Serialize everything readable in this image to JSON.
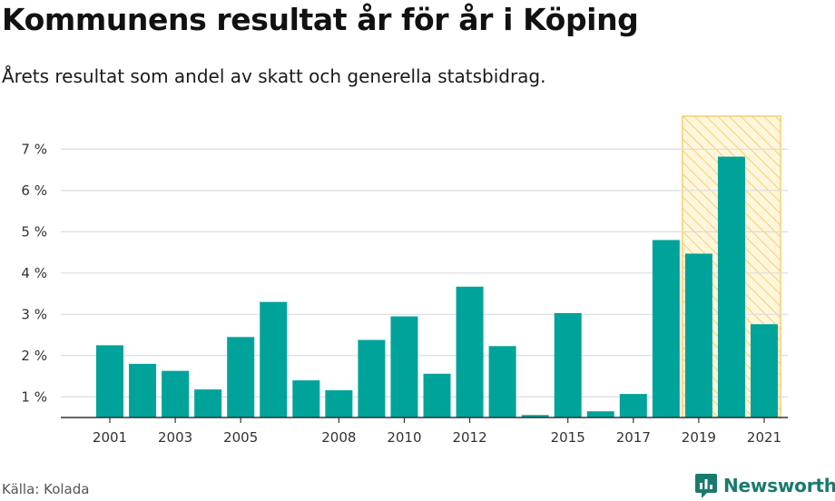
{
  "title": "Kommunens resultat år för år i Köping",
  "subtitle": "Årets resultat som andel av skatt och generella statsbidrag.",
  "source": "Källa: Kolada",
  "brand": "Newsworthy",
  "colors": {
    "bar": "#00a39a",
    "highlight_fill": "#fff6dc",
    "highlight_stroke": "#f5cf6e",
    "grid": "#dddddd",
    "axis": "#333333",
    "brand": "#1a7a6e"
  },
  "chart_data": {
    "type": "bar",
    "title": "Kommunens resultat år för år i Köping",
    "subtitle": "Årets resultat som andel av skatt och generella statsbidrag.",
    "x": [
      2001,
      2002,
      2003,
      2004,
      2005,
      2006,
      2007,
      2008,
      2009,
      2010,
      2011,
      2012,
      2013,
      2014,
      2015,
      2016,
      2017,
      2018,
      2019,
      2020,
      2021
    ],
    "values": [
      2.25,
      1.8,
      1.63,
      1.18,
      2.45,
      3.3,
      1.4,
      1.16,
      2.38,
      2.95,
      1.56,
      3.67,
      2.23,
      0.56,
      3.03,
      0.65,
      1.07,
      4.8,
      4.47,
      6.82,
      2.76
    ],
    "tick_labels": [
      "2001",
      "2003",
      "2005",
      "2008",
      "2010",
      "2012",
      "2015",
      "2017",
      "2019",
      "2021"
    ],
    "y_ticks": [
      1,
      2,
      3,
      4,
      5,
      6,
      7
    ],
    "y_tick_suffix": " %",
    "ylim": [
      0.5,
      7.8
    ],
    "xlabel": "",
    "ylabel": "",
    "grid": true,
    "highlight_range": [
      2019,
      2021
    ],
    "highlight_style": "hatched"
  }
}
